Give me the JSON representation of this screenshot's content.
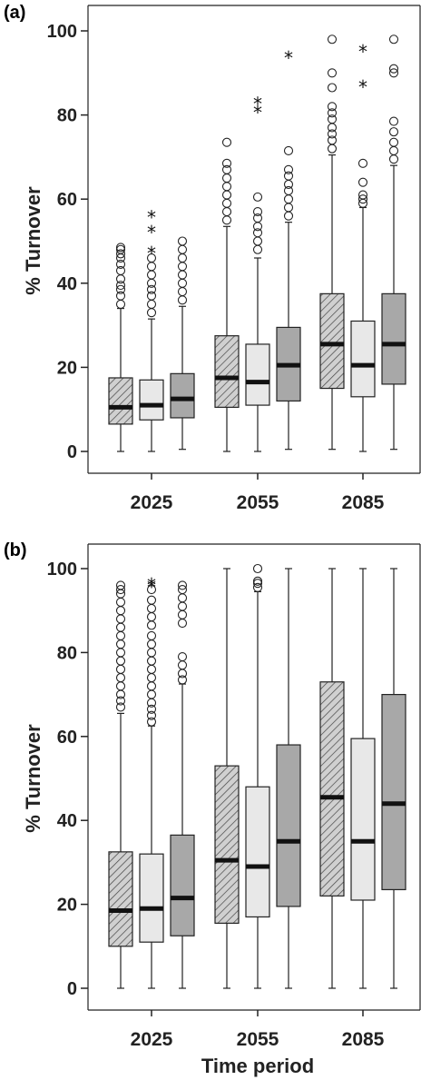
{
  "chart_data": [
    {
      "type": "boxplot",
      "panel_label": "(a)",
      "ylabel": "% Turnover",
      "xlabel": "",
      "ylim": [
        0,
        100
      ],
      "yticks": [
        "0",
        "20",
        "40",
        "60",
        "80",
        "100"
      ],
      "categories": [
        "2025",
        "2055",
        "2085"
      ],
      "series_styles": [
        "hatched",
        "light-grey",
        "dark-grey"
      ],
      "colors": {
        "hatched": "#d0d0d0",
        "light-grey": "#e8e8e8",
        "dark-grey": "#a8a8a8",
        "stroke": "#222222"
      },
      "boxes": [
        [
          {
            "min": 0,
            "q1": 6.5,
            "median": 10.5,
            "q3": 17.5,
            "max": 34,
            "outliers": [
              35,
              37,
              38.5,
              39.5,
              41,
              43,
              44.5,
              46,
              47,
              48,
              48.5
            ],
            "extremes": []
          },
          {
            "min": 0,
            "q1": 7.5,
            "median": 11,
            "q3": 17,
            "max": 31.5,
            "outliers": [
              33,
              35,
              37,
              38.5,
              40,
              42,
              44,
              46
            ],
            "extremes": [
              47.5,
              52.5,
              56
            ]
          },
          {
            "min": 0.5,
            "q1": 8,
            "median": 12.5,
            "q3": 18.5,
            "max": 34.5,
            "outliers": [
              36,
              38,
              40,
              42,
              44,
              46,
              48,
              50
            ],
            "extremes": []
          }
        ],
        [
          {
            "min": 0,
            "q1": 10.5,
            "median": 17.5,
            "q3": 27.5,
            "max": 53.5,
            "outliers": [
              55,
              57,
              59,
              61,
              63,
              65,
              67,
              68.5,
              73.5
            ],
            "extremes": []
          },
          {
            "min": 0,
            "q1": 11,
            "median": 16.5,
            "q3": 25.5,
            "max": 46,
            "outliers": [
              48,
              50,
              52,
              53.5,
              55.5,
              57,
              60.5
            ],
            "extremes": [
              81,
              83
            ]
          },
          {
            "min": 0.5,
            "q1": 12,
            "median": 20.5,
            "q3": 29.5,
            "max": 54.5,
            "outliers": [
              56,
              58,
              60,
              62,
              63.5,
              65.5,
              67,
              71.5
            ],
            "extremes": [
              94
            ]
          }
        ],
        [
          {
            "min": 0.5,
            "q1": 15,
            "median": 25.5,
            "q3": 37.5,
            "max": 70.5,
            "outliers": [
              72,
              74,
              75.5,
              77,
              79,
              80.5,
              82,
              86.5,
              90,
              98
            ],
            "extremes": []
          },
          {
            "min": 0,
            "q1": 13,
            "median": 20.5,
            "q3": 31,
            "max": 58,
            "outliers": [
              59,
              60,
              61,
              64,
              68.5
            ],
            "extremes": [
              87,
              95.5
            ]
          },
          {
            "min": 0.5,
            "q1": 16,
            "median": 25.5,
            "q3": 37.5,
            "max": 68,
            "outliers": [
              69.5,
              71.5,
              73.5,
              76,
              78.5,
              90,
              91,
              98
            ],
            "extremes": []
          }
        ]
      ]
    },
    {
      "type": "boxplot",
      "panel_label": "(b)",
      "ylabel": "% Turnover",
      "xlabel": "Time period",
      "ylim": [
        0,
        100
      ],
      "yticks": [
        "0",
        "20",
        "40",
        "60",
        "80",
        "100"
      ],
      "categories": [
        "2025",
        "2055",
        "2085"
      ],
      "series_styles": [
        "hatched",
        "light-grey",
        "dark-grey"
      ],
      "colors": {
        "hatched": "#d0d0d0",
        "light-grey": "#e8e8e8",
        "dark-grey": "#a8a8a8",
        "stroke": "#222222"
      },
      "boxes": [
        [
          {
            "min": 0,
            "q1": 10,
            "median": 18.5,
            "q3": 32.5,
            "max": 65.5,
            "outliers": [
              67,
              68.5,
              70,
              72,
              74,
              76,
              78,
              80,
              82,
              84,
              86,
              88,
              90,
              92,
              94,
              95,
              96
            ],
            "extremes": []
          },
          {
            "min": 0,
            "q1": 11,
            "median": 19,
            "q3": 32,
            "max": 62.5,
            "outliers": [
              63.5,
              65,
              66.5,
              68,
              70,
              72,
              74,
              76,
              78,
              80,
              82,
              84,
              86.5,
              88.5,
              90.5,
              92.5,
              95
            ],
            "extremes": [
              96,
              96.5
            ]
          },
          {
            "min": 0,
            "q1": 12.5,
            "median": 21.5,
            "q3": 36.5,
            "max": 72.5,
            "outliers": [
              73.5,
              75,
              77,
              79,
              87,
              89,
              91,
              93,
              95,
              96
            ],
            "extremes": []
          }
        ],
        [
          {
            "min": 0,
            "q1": 15.5,
            "median": 30.5,
            "q3": 53,
            "max": 100,
            "outliers": [],
            "extremes": []
          },
          {
            "min": 0,
            "q1": 17,
            "median": 29,
            "q3": 48,
            "max": 94.5,
            "outliers": [
              95.5,
              96.5,
              97,
              100
            ],
            "extremes": []
          },
          {
            "min": 0,
            "q1": 19.5,
            "median": 35,
            "q3": 58,
            "max": 100,
            "outliers": [],
            "extremes": []
          }
        ],
        [
          {
            "min": 0,
            "q1": 22,
            "median": 45.5,
            "q3": 73,
            "max": 100,
            "outliers": [],
            "extremes": []
          },
          {
            "min": 0,
            "q1": 21,
            "median": 35,
            "q3": 59.5,
            "max": 100,
            "outliers": [],
            "extremes": []
          },
          {
            "min": 0,
            "q1": 23.5,
            "median": 44,
            "q3": 70,
            "max": 100,
            "outliers": [],
            "extremes": []
          }
        ]
      ]
    }
  ]
}
